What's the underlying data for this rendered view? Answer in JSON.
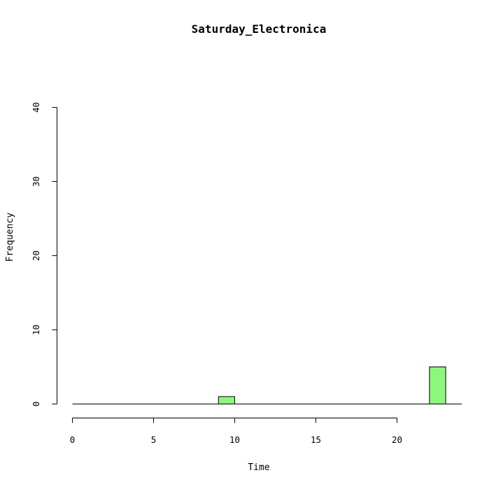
{
  "chart_data": {
    "type": "bar",
    "title": "Saturday_Electronica",
    "xlabel": "Time",
    "ylabel": "Frequency",
    "bin_width": 1,
    "bins": [
      {
        "start": 0,
        "end": 1,
        "count": 0
      },
      {
        "start": 1,
        "end": 2,
        "count": 0
      },
      {
        "start": 2,
        "end": 3,
        "count": 0
      },
      {
        "start": 3,
        "end": 4,
        "count": 0
      },
      {
        "start": 4,
        "end": 5,
        "count": 0
      },
      {
        "start": 5,
        "end": 6,
        "count": 0
      },
      {
        "start": 6,
        "end": 7,
        "count": 0
      },
      {
        "start": 7,
        "end": 8,
        "count": 0
      },
      {
        "start": 8,
        "end": 9,
        "count": 0
      },
      {
        "start": 9,
        "end": 10,
        "count": 1
      },
      {
        "start": 10,
        "end": 11,
        "count": 0
      },
      {
        "start": 11,
        "end": 12,
        "count": 0
      },
      {
        "start": 12,
        "end": 13,
        "count": 0
      },
      {
        "start": 13,
        "end": 14,
        "count": 0
      },
      {
        "start": 14,
        "end": 15,
        "count": 0
      },
      {
        "start": 15,
        "end": 16,
        "count": 0
      },
      {
        "start": 16,
        "end": 17,
        "count": 0
      },
      {
        "start": 17,
        "end": 18,
        "count": 0
      },
      {
        "start": 18,
        "end": 19,
        "count": 0
      },
      {
        "start": 19,
        "end": 20,
        "count": 0
      },
      {
        "start": 20,
        "end": 21,
        "count": 0
      },
      {
        "start": 21,
        "end": 22,
        "count": 0
      },
      {
        "start": 22,
        "end": 23,
        "count": 5
      },
      {
        "start": 23,
        "end": 24,
        "count": 0
      }
    ],
    "xlim": [
      0,
      24
    ],
    "ylim": [
      0,
      40
    ],
    "xticks": [
      0,
      5,
      10,
      15,
      20
    ],
    "yticks": [
      0,
      10,
      20,
      30,
      40
    ],
    "bar_color": "#8cf77c",
    "grid": false,
    "legend": "none"
  }
}
